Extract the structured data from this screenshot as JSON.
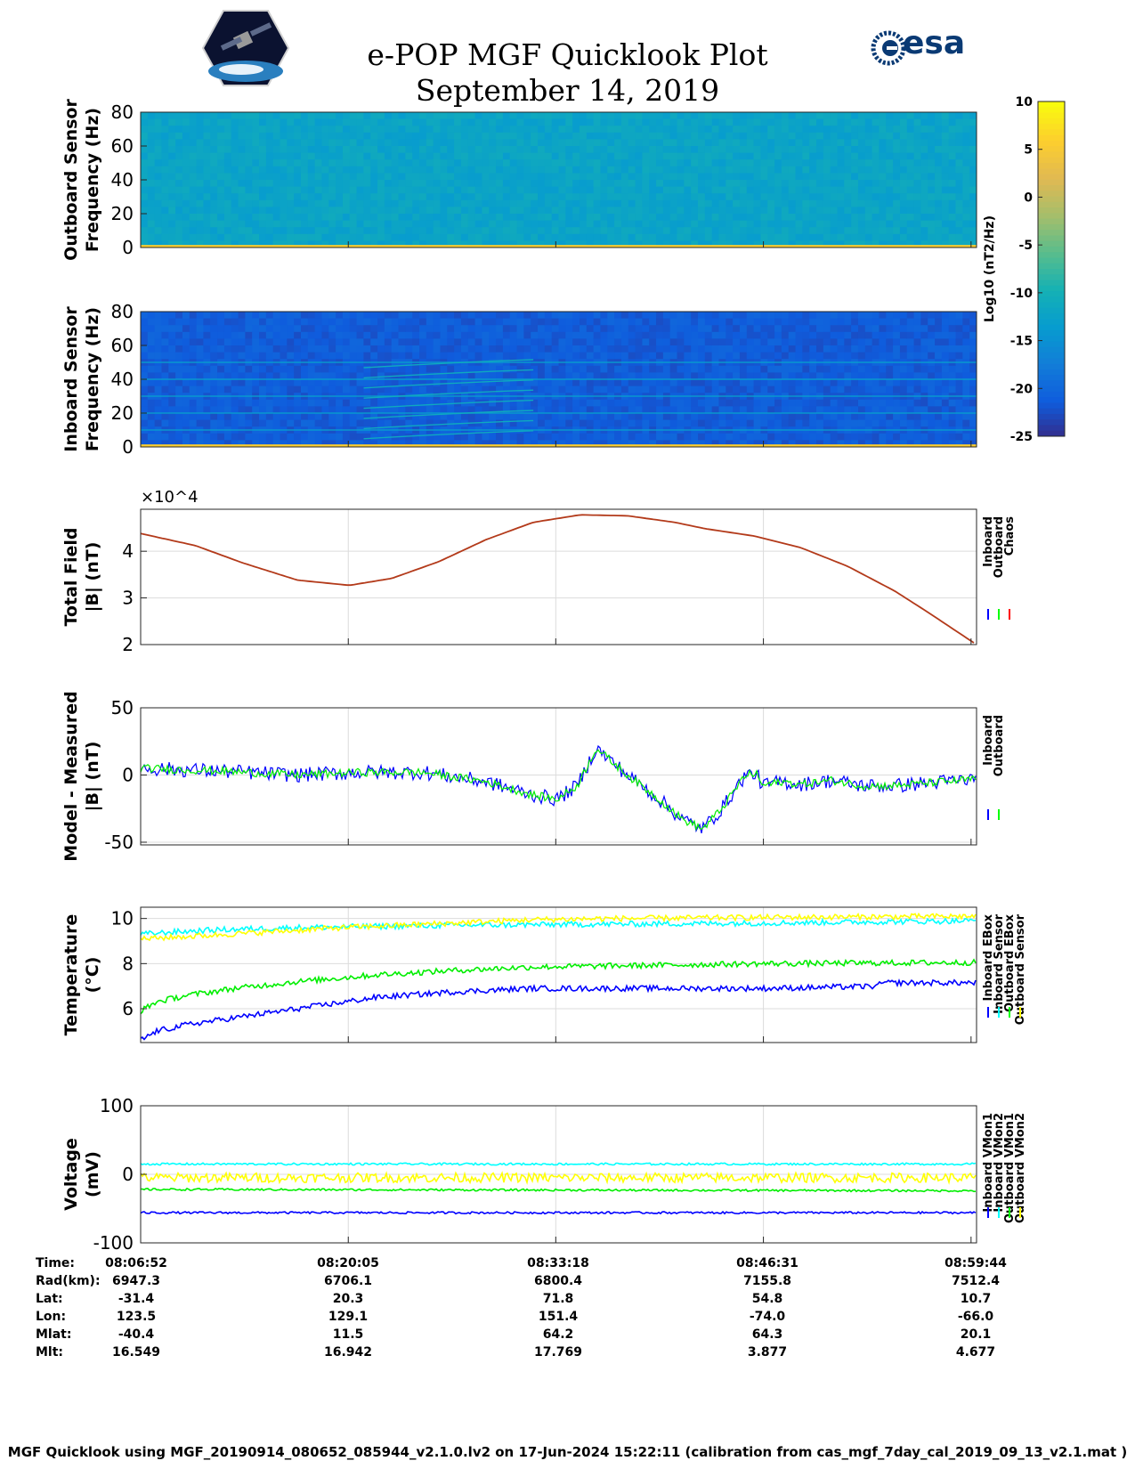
{
  "header": {
    "title": "e-POP MGF Quicklook Plot",
    "date": "September 14, 2019",
    "left_logo": "cassiope-satellite-logo",
    "right_logo": "esa-logo",
    "right_logo_text": "esa"
  },
  "colorbar": {
    "label": "Log10 (nT2/Hz)",
    "ticks": [
      10,
      5,
      0,
      -5,
      -10,
      -15,
      -20,
      -25
    ],
    "range": [
      -25,
      10
    ],
    "colormap": "parula"
  },
  "chart_data": [
    {
      "type": "heatmap",
      "panel": "outboard-spectrogram",
      "ylabel": [
        "Outboard Sensor",
        "Frequency (Hz)"
      ],
      "ylim": [
        0,
        80
      ],
      "yticks": [
        0,
        20,
        40,
        60,
        80
      ],
      "background_log_psd": -12,
      "features": "yellow band near 0 Hz; weak enhancements near 08:33 and 08:46"
    },
    {
      "type": "heatmap",
      "panel": "inboard-spectrogram",
      "ylabel": [
        "Inboard Sensor",
        "Frequency (Hz)"
      ],
      "ylim": [
        0,
        80
      ],
      "yticks": [
        0,
        20,
        40,
        60,
        80
      ],
      "background_log_psd": -21,
      "tones_hz": [
        10,
        20,
        30,
        40,
        50
      ],
      "features": "harmonic lines starting ~08:14; yellow band near 0 Hz"
    },
    {
      "type": "line",
      "panel": "total-field",
      "ylabel": [
        "Total Field",
        "|B| (nT)"
      ],
      "exponent_label": "×10^4",
      "ylim": [
        2,
        4.9
      ],
      "yticks": [
        2,
        3,
        4
      ],
      "legend": [
        "Inboard",
        "Outboard",
        "Chaos"
      ],
      "legend_colors": [
        "#0000ff",
        "#00ff00",
        "#ff0000"
      ],
      "series": [
        {
          "name": "Chaos",
          "color": "#b33a1a",
          "x": [
            0,
            3.5,
            6.5,
            10,
            13.3,
            16,
            19,
            22,
            25,
            28,
            31,
            34,
            36,
            39,
            42,
            45,
            48,
            50,
            53.22
          ],
          "y": [
            4.38,
            4.12,
            3.75,
            3.38,
            3.27,
            3.42,
            3.78,
            4.25,
            4.62,
            4.78,
            4.76,
            4.62,
            4.48,
            4.33,
            4.08,
            3.68,
            3.15,
            2.72,
            2.0
          ]
        }
      ]
    },
    {
      "type": "line",
      "panel": "model-minus-measured",
      "ylabel": [
        "Model - Measured",
        "|B| (nT)"
      ],
      "ylim": [
        -52,
        50
      ],
      "yticks": [
        -50,
        0,
        50
      ],
      "legend": [
        "Inboard",
        "Outboard"
      ],
      "legend_colors": [
        "#0000ff",
        "#00ff00"
      ],
      "series": [
        {
          "name": "Outboard",
          "color": "#00ee00",
          "x": [
            0,
            5,
            10,
            14,
            18,
            22,
            25,
            26.5,
            27.8,
            29,
            31,
            33,
            34.5,
            35.8,
            37,
            38.5,
            39.2,
            39.6,
            40,
            40.8,
            42,
            44,
            46,
            48,
            50,
            53.22
          ],
          "y": [
            5,
            3,
            0,
            2,
            2,
            -5,
            -15,
            -18,
            -8,
            20,
            0,
            -18,
            -33,
            -40,
            -25,
            0,
            1,
            -8,
            -7,
            -5,
            -7,
            -4,
            -8,
            -8,
            -6,
            -3
          ]
        }
      ]
    },
    {
      "type": "line",
      "panel": "temperature",
      "ylabel": [
        "Temperature",
        "(°C)"
      ],
      "ylim": [
        4.5,
        10.5
      ],
      "yticks": [
        6,
        8,
        10
      ],
      "legend": [
        "Inboard EBox",
        "Inboard Sensor",
        "Outboard EBox",
        "Outboard Sensor"
      ],
      "legend_colors": [
        "#0000ff",
        "#00ffff",
        "#00ff00",
        "#ffff00"
      ],
      "series": [
        {
          "name": "Inboard EBox",
          "color": "#0000ff",
          "x": [
            0,
            1,
            3,
            6,
            9,
            12,
            15,
            20,
            25,
            30,
            40,
            47,
            47.1,
            53.22
          ],
          "y": [
            4.6,
            5.0,
            5.3,
            5.6,
            5.9,
            6.2,
            6.5,
            6.75,
            6.9,
            6.9,
            6.9,
            7.0,
            7.15,
            7.15
          ]
        },
        {
          "name": "Inboard Sensor",
          "color": "#00ffff",
          "x": [
            0,
            2,
            5,
            10,
            20,
            30,
            40,
            53.22
          ],
          "y": [
            9.3,
            9.4,
            9.5,
            9.6,
            9.7,
            9.75,
            9.8,
            9.9
          ]
        },
        {
          "name": "Outboard EBox",
          "color": "#00ee00",
          "x": [
            0,
            1,
            3,
            6,
            10,
            15,
            20,
            25,
            30,
            40,
            53.22
          ],
          "y": [
            5.9,
            6.3,
            6.6,
            6.9,
            7.2,
            7.5,
            7.7,
            7.85,
            7.9,
            8.0,
            8.05
          ]
        },
        {
          "name": "Outboard Sensor",
          "color": "#ffff00",
          "x": [
            0,
            3,
            8,
            13,
            20,
            25,
            30,
            40,
            53.22
          ],
          "y": [
            9.1,
            9.2,
            9.4,
            9.6,
            9.8,
            9.95,
            10.0,
            10.05,
            10.1
          ]
        }
      ]
    },
    {
      "type": "line",
      "panel": "voltage",
      "ylabel": [
        "Voltage",
        "(mV)"
      ],
      "ylim": [
        -100,
        100
      ],
      "yticks": [
        -100,
        0,
        100
      ],
      "legend": [
        "Inboard VMon1",
        "Inboard VMon2",
        "Outboard VMon1",
        "Outboard VMon2"
      ],
      "legend_colors": [
        "#0000ff",
        "#00ffff",
        "#00ff00",
        "#ffff00"
      ],
      "series": [
        {
          "name": "Inboard VMon1",
          "color": "#0000ff",
          "x": [
            0,
            53.22
          ],
          "y": [
            -56,
            -56
          ]
        },
        {
          "name": "Inboard VMon2",
          "color": "#00ffff",
          "x": [
            0,
            53.22
          ],
          "y": [
            15,
            15
          ]
        },
        {
          "name": "Outboard VMon1",
          "color": "#00ee00",
          "x": [
            0,
            53.22
          ],
          "y": [
            -22,
            -24
          ]
        },
        {
          "name": "Outboard VMon2",
          "color": "#ffff00",
          "x": [
            0,
            53.22
          ],
          "y": [
            -5,
            -5
          ]
        }
      ]
    }
  ],
  "x_axis_minutes": [
    0,
    13.22,
    26.43,
    39.65,
    52.87
  ],
  "x_range_minutes": [
    0,
    53.22
  ],
  "ephemeris": {
    "row_labels": [
      "Time:",
      "Rad(km):",
      "Lat:",
      "Lon:",
      "Mlat:",
      "Mlt:"
    ],
    "columns": [
      [
        "08:06:52",
        "6947.3",
        "-31.4",
        "123.5",
        "-40.4",
        "16.549"
      ],
      [
        "08:20:05",
        "6706.1",
        "20.3",
        "129.1",
        "11.5",
        "16.942"
      ],
      [
        "08:33:18",
        "6800.4",
        "71.8",
        "151.4",
        "64.2",
        "17.769"
      ],
      [
        "08:46:31",
        "7155.8",
        "54.8",
        "-74.0",
        "64.3",
        "3.877"
      ],
      [
        "08:59:44",
        "7512.4",
        "10.7",
        "-66.0",
        "20.1",
        "4.677"
      ]
    ]
  },
  "footer": "MGF Quicklook using MGF_20190914_080652_085944_v2.1.0.lv2 on 17-Jun-2024 15:22:11 (calibration from cas_mgf_7day_cal_2019_09_13_v2.1.mat )"
}
